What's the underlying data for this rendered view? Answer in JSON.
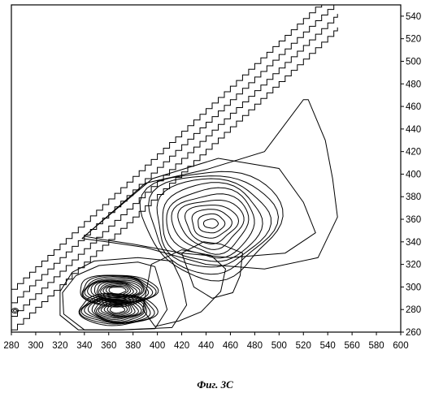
{
  "caption": "Фиг. 3С",
  "chart_data": {
    "type": "contour",
    "title": "",
    "xlabel": "",
    "ylabel": "",
    "xlim": [
      280,
      600
    ],
    "ylim": [
      260,
      550
    ],
    "x_ticks": [
      280,
      300,
      320,
      340,
      360,
      380,
      400,
      420,
      440,
      460,
      480,
      500,
      520,
      540,
      560,
      580,
      600
    ],
    "y_ticks": [
      260,
      280,
      300,
      320,
      340,
      360,
      380,
      400,
      420,
      440,
      460,
      480,
      500,
      520,
      540
    ],
    "y_axis_side": "right",
    "grid": false,
    "line_color": "#000000",
    "scatter_bands": [
      {
        "name": "",
        "x_start": 280,
        "x_end": 548,
        "offsets": [
          -18,
          18
        ]
      },
      {
        "name": "",
        "x_start": 280,
        "x_end": 548,
        "offsets": [
          -6,
          6
        ]
      },
      {
        "name": "",
        "x_start": 552,
        "x_end": 600,
        "offsets": [
          -2,
          6
        ]
      }
    ],
    "peaks": [
      {
        "name": "",
        "center": [
          444,
          356
        ],
        "levels": 11,
        "outer_radius": [
          56,
          48
        ],
        "inner_radius": [
          6,
          4
        ]
      },
      {
        "name": "",
        "center": [
          367,
          297
        ],
        "levels": 13,
        "outer_radius": [
          32,
          14
        ],
        "inner_radius": [
          7,
          3
        ]
      },
      {
        "name": "",
        "center": [
          367,
          280
        ],
        "levels": 13,
        "outer_radius": [
          32,
          14
        ],
        "inner_radius": [
          6,
          3
        ]
      }
    ],
    "outer_contours": [
      [
        [
          338,
          343
        ],
        [
          390,
          392
        ],
        [
          440,
          404
        ],
        [
          488,
          420
        ],
        [
          520,
          466
        ],
        [
          524,
          466
        ],
        [
          538,
          430
        ],
        [
          544,
          396
        ],
        [
          548,
          362
        ],
        [
          532,
          326
        ],
        [
          488,
          316
        ],
        [
          440,
          320
        ],
        [
          390,
          335
        ],
        [
          358,
          340
        ],
        [
          338,
          343
        ]
      ],
      [
        [
          340,
          345
        ],
        [
          396,
          396
        ],
        [
          450,
          414
        ],
        [
          500,
          405
        ],
        [
          520,
          375
        ],
        [
          530,
          348
        ],
        [
          505,
          330
        ],
        [
          460,
          326
        ],
        [
          420,
          330
        ],
        [
          380,
          338
        ],
        [
          355,
          342
        ],
        [
          340,
          345
        ]
      ],
      [
        [
          333,
          310
        ],
        [
          352,
          319
        ],
        [
          384,
          322
        ],
        [
          398,
          318
        ],
        [
          403,
          300
        ],
        [
          408,
          280
        ],
        [
          398,
          263
        ],
        [
          372,
          262
        ],
        [
          340,
          262
        ],
        [
          323,
          276
        ],
        [
          322,
          295
        ],
        [
          333,
          310
        ]
      ],
      [
        [
          395,
          320
        ],
        [
          420,
          333
        ],
        [
          444,
          328
        ],
        [
          456,
          316
        ],
        [
          452,
          296
        ],
        [
          436,
          278
        ],
        [
          418,
          270
        ],
        [
          398,
          265
        ],
        [
          388,
          280
        ],
        [
          395,
          320
        ]
      ],
      [
        [
          330,
          313
        ],
        [
          348,
          323
        ],
        [
          384,
          326
        ],
        [
          412,
          323
        ],
        [
          420,
          305
        ],
        [
          424,
          284
        ],
        [
          412,
          264
        ],
        [
          370,
          262
        ],
        [
          335,
          262
        ],
        [
          320,
          275
        ],
        [
          320,
          296
        ],
        [
          330,
          313
        ]
      ],
      [
        [
          420,
          330
        ],
        [
          438,
          340
        ],
        [
          452,
          338
        ],
        [
          470,
          330
        ],
        [
          468,
          310
        ],
        [
          462,
          295
        ],
        [
          445,
          290
        ],
        [
          430,
          300
        ],
        [
          420,
          330
        ]
      ]
    ],
    "edge_marks": [
      {
        "name": "",
        "x": 283,
        "y": 279
      }
    ]
  }
}
